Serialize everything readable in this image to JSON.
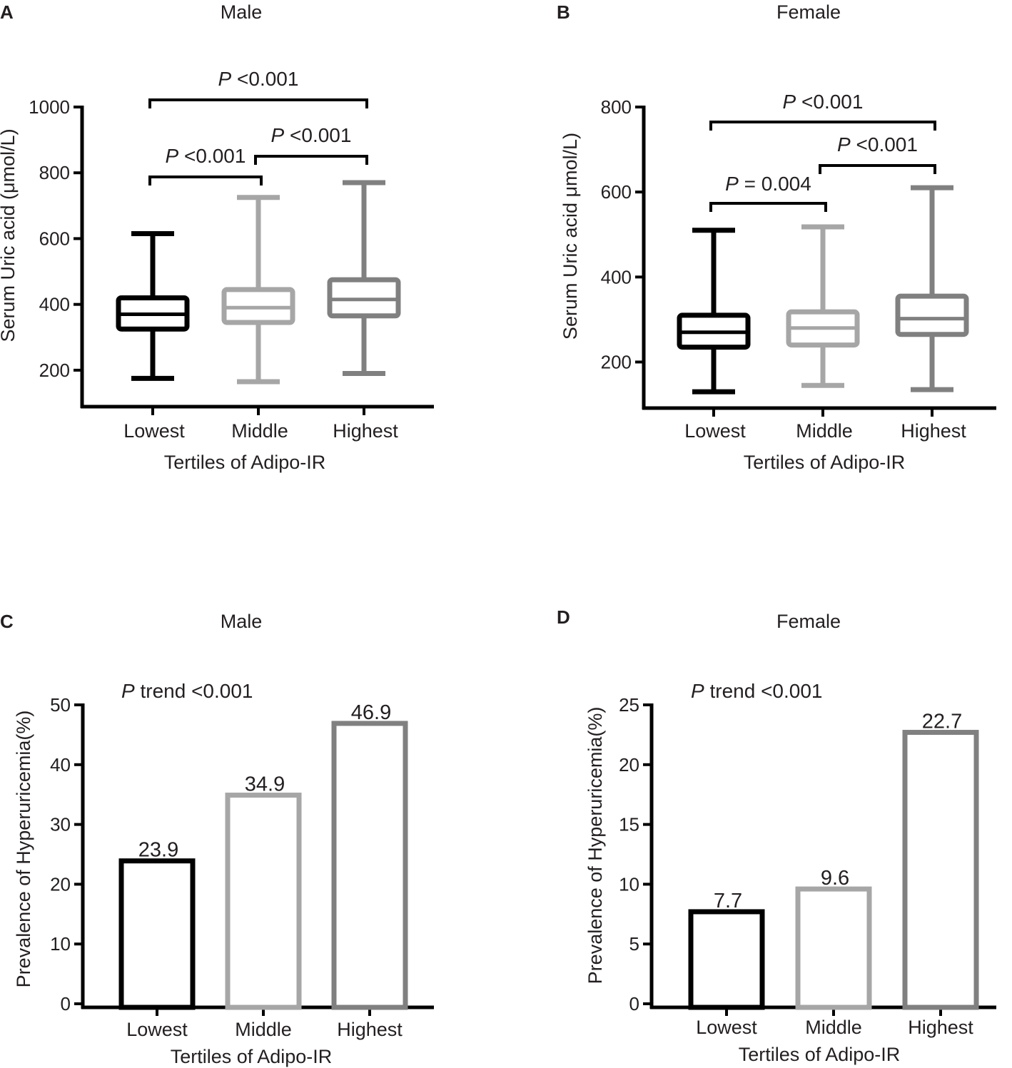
{
  "panels": [
    {
      "letter": "A",
      "title": "Male",
      "annotations": [
        {
          "italic": "P",
          "text": " <0.001",
          "from": 0,
          "to": 2
        },
        {
          "italic": "P",
          "text": " <0.001",
          "from": 0,
          "to": 1
        },
        {
          "italic": "P",
          "text": " <0.001",
          "from": 1,
          "to": 2
        }
      ]
    },
    {
      "letter": "B",
      "title": "Female",
      "annotations": [
        {
          "italic": "P",
          "text": " <0.001",
          "from": 0,
          "to": 2
        },
        {
          "italic": "P",
          "text": " = 0.004",
          "from": 0,
          "to": 1
        },
        {
          "italic": "P",
          "text": " <0.001",
          "from": 1,
          "to": 2
        }
      ]
    },
    {
      "letter": "C",
      "title": "Male",
      "annotations": [
        {
          "italic": "P",
          "text": " trend <0.001"
        }
      ]
    },
    {
      "letter": "D",
      "title": "Female",
      "annotations": [
        {
          "italic": "P",
          "text": " trend <0.001"
        }
      ]
    }
  ],
  "chart_data": [
    {
      "type": "box",
      "title": "Male",
      "xlabel": "Tertiles of Adipo-IR",
      "ylabel": "Serum Uric acid (μmol/L)",
      "ylim": [
        100,
        1000
      ],
      "yticks": [
        200,
        400,
        600,
        800,
        1000
      ],
      "categories": [
        "Lowest",
        "Middle",
        "Highest"
      ],
      "colors": [
        "#000000",
        "#a6a6a6",
        "#808080"
      ],
      "boxes": [
        {
          "min": 175,
          "q1": 325,
          "median": 370,
          "q3": 420,
          "max": 615
        },
        {
          "min": 165,
          "q1": 345,
          "median": 390,
          "q3": 445,
          "max": 725
        },
        {
          "min": 190,
          "q1": 365,
          "median": 415,
          "q3": 475,
          "max": 770
        }
      ]
    },
    {
      "type": "box",
      "title": "Female",
      "xlabel": "Tertiles of Adipo-IR",
      "ylabel": "Serum Uric acid μmol/L)",
      "ylim": [
        100,
        800
      ],
      "yticks": [
        200,
        400,
        600,
        800
      ],
      "categories": [
        "Lowest",
        "Middle",
        "Highest"
      ],
      "colors": [
        "#000000",
        "#a6a6a6",
        "#808080"
      ],
      "boxes": [
        {
          "min": 130,
          "q1": 235,
          "median": 270,
          "q3": 310,
          "max": 510
        },
        {
          "min": 145,
          "q1": 240,
          "median": 280,
          "q3": 318,
          "max": 518
        },
        {
          "min": 135,
          "q1": 265,
          "median": 302,
          "q3": 355,
          "max": 610
        }
      ]
    },
    {
      "type": "bar",
      "title": "Male",
      "xlabel": "Tertiles of Adipo-IR",
      "ylabel": "Prevalence of Hyperuricemia(%)",
      "ylim": [
        0,
        50
      ],
      "yticks": [
        0,
        10,
        20,
        30,
        40,
        50
      ],
      "categories": [
        "Lowest",
        "Middle",
        "Highest"
      ],
      "values": [
        23.9,
        34.9,
        46.9
      ],
      "value_labels": [
        "23.9",
        "34.9",
        "46.9"
      ],
      "colors": [
        "#000000",
        "#a6a6a6",
        "#808080"
      ]
    },
    {
      "type": "bar",
      "title": "Female",
      "xlabel": "Tertiles of Adipo-IR",
      "ylabel": "Prevalence of Hyperuricemia(%)",
      "ylim": [
        0,
        25
      ],
      "yticks": [
        0,
        5,
        10,
        15,
        20,
        25
      ],
      "categories": [
        "Lowest",
        "Middle",
        "Highest"
      ],
      "values": [
        7.7,
        9.6,
        22.7
      ],
      "value_labels": [
        "7.7",
        "9.6",
        "22.7"
      ],
      "colors": [
        "#000000",
        "#a6a6a6",
        "#808080"
      ]
    }
  ]
}
